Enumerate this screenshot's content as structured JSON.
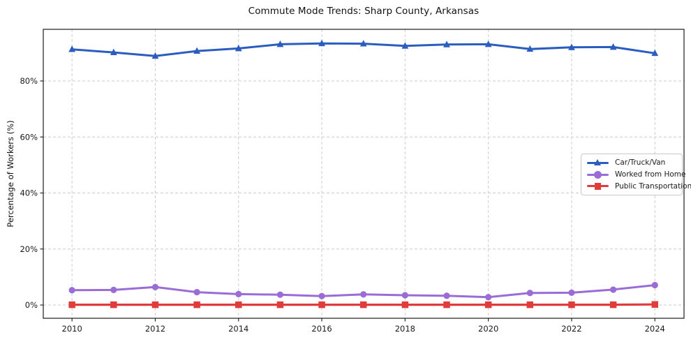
{
  "chart_data": {
    "type": "line",
    "title": "Commute Mode Trends: Sharp County, Arkansas",
    "ylabel": "Percentage of Workers (%)",
    "xlabel": "",
    "x": [
      2010,
      2011,
      2012,
      2013,
      2014,
      2015,
      2016,
      2017,
      2018,
      2019,
      2020,
      2021,
      2022,
      2023,
      2024
    ],
    "xticks": {
      "values": [
        2010,
        2012,
        2014,
        2016,
        2018,
        2020,
        2022,
        2024
      ],
      "labels": [
        "2010",
        "2012",
        "2014",
        "2016",
        "2018",
        "2020",
        "2022",
        "2024"
      ]
    },
    "yticks": {
      "values": [
        0,
        20,
        40,
        60,
        80
      ],
      "labels": [
        "0%",
        "20%",
        "40%",
        "60%",
        "80%"
      ]
    },
    "xlim": [
      2009.31,
      2024.7
    ],
    "ylim": [
      -4.73,
      98.44
    ],
    "grid": true,
    "legend": {
      "position": "center-right"
    },
    "series": [
      {
        "name": "Car/Truck/Van",
        "color": "#2b5dc0",
        "marker": "triangle",
        "values": [
          91.3,
          90.2,
          88.9,
          90.7,
          91.6,
          93.1,
          93.4,
          93.3,
          92.5,
          93.0,
          93.1,
          91.4,
          92.0,
          92.1,
          89.9
        ]
      },
      {
        "name": "Worked from Home",
        "color": "#9a6cd6",
        "marker": "circle",
        "values": [
          5.3,
          5.4,
          6.4,
          4.6,
          3.9,
          3.7,
          3.2,
          3.8,
          3.5,
          3.3,
          2.8,
          4.3,
          4.4,
          5.5,
          7.1
        ]
      },
      {
        "name": "Public Transportation",
        "color": "#e03c3c",
        "marker": "square",
        "values": [
          0.1,
          0.1,
          0.1,
          0.1,
          0.1,
          0.1,
          0.1,
          0.1,
          0.1,
          0.1,
          0.1,
          0.1,
          0.1,
          0.1,
          0.2
        ]
      }
    ]
  },
  "style": {
    "background": "#ffffff",
    "frame_color": "#1a1a1a",
    "grid_color": "#cccccc",
    "tick_label_color": "#1a1a1a",
    "legend_border_color": "#c9c9c9"
  }
}
